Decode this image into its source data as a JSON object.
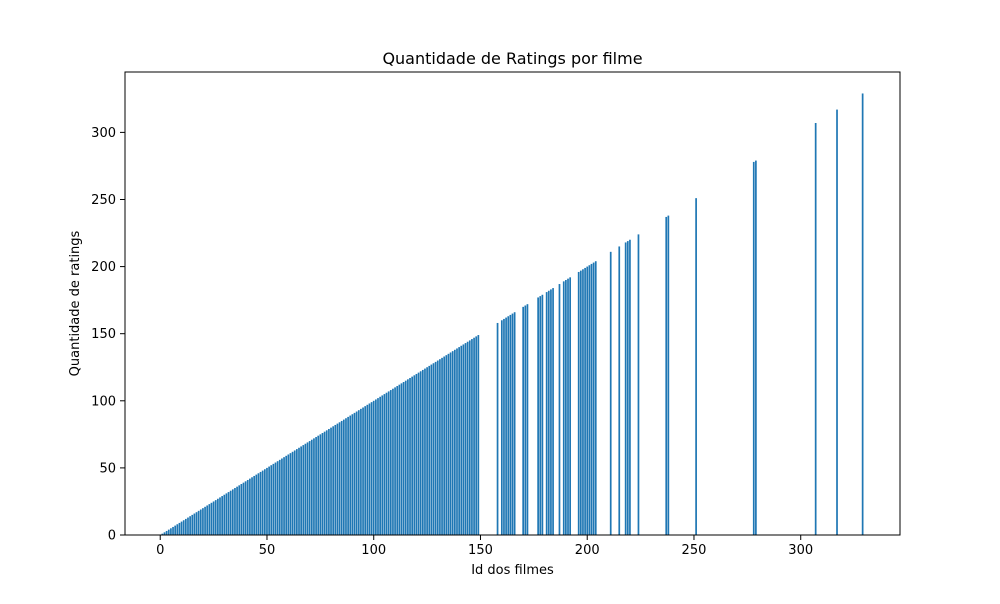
{
  "colors": {
    "bar": "#1f77b4",
    "axis": "#000000",
    "background": "#ffffff"
  },
  "chart_data": {
    "type": "bar",
    "title": "Quantidade de Ratings por filme",
    "xlabel": "Id dos filmes",
    "ylabel": "Quantidade de ratings",
    "xlim": [
      -16.5,
      346.5
    ],
    "ylim": [
      0,
      345
    ],
    "grid": false,
    "bar_width": 0.8,
    "xticks": [
      0,
      50,
      100,
      150,
      200,
      250,
      300
    ],
    "yticks": [
      0,
      50,
      100,
      150,
      200,
      250,
      300
    ],
    "x": [
      1,
      2,
      3,
      4,
      5,
      6,
      7,
      8,
      9,
      10,
      11,
      12,
      13,
      14,
      15,
      16,
      17,
      18,
      19,
      20,
      21,
      22,
      23,
      24,
      25,
      26,
      27,
      28,
      29,
      30,
      31,
      32,
      33,
      34,
      35,
      36,
      37,
      38,
      39,
      40,
      41,
      42,
      43,
      44,
      45,
      46,
      47,
      48,
      49,
      50,
      51,
      52,
      53,
      54,
      55,
      56,
      57,
      58,
      59,
      60,
      61,
      62,
      63,
      64,
      65,
      66,
      67,
      68,
      69,
      70,
      71,
      72,
      73,
      74,
      75,
      76,
      77,
      78,
      79,
      80,
      81,
      82,
      83,
      84,
      85,
      86,
      87,
      88,
      89,
      90,
      91,
      92,
      93,
      94,
      95,
      96,
      97,
      98,
      99,
      100,
      101,
      102,
      103,
      104,
      105,
      106,
      107,
      108,
      109,
      110,
      111,
      112,
      113,
      114,
      115,
      116,
      117,
      118,
      119,
      120,
      121,
      122,
      123,
      124,
      125,
      126,
      127,
      128,
      129,
      130,
      131,
      132,
      133,
      134,
      135,
      136,
      137,
      138,
      139,
      140,
      141,
      142,
      143,
      144,
      145,
      146,
      147,
      148,
      149,
      158,
      160,
      161,
      162,
      163,
      164,
      165,
      166,
      170,
      171,
      172,
      177,
      178,
      179,
      181,
      182,
      183,
      184,
      187,
      189,
      190,
      191,
      192,
      196,
      197,
      198,
      199,
      200,
      201,
      202,
      203,
      204,
      211,
      215,
      218,
      219,
      220,
      224,
      237,
      238,
      251,
      278,
      279,
      307,
      317,
      329
    ],
    "values": [
      1,
      2,
      3,
      4,
      5,
      6,
      7,
      8,
      9,
      10,
      11,
      12,
      13,
      14,
      15,
      16,
      17,
      18,
      19,
      20,
      21,
      22,
      23,
      24,
      25,
      26,
      27,
      28,
      29,
      30,
      31,
      32,
      33,
      34,
      35,
      36,
      37,
      38,
      39,
      40,
      41,
      42,
      43,
      44,
      45,
      46,
      47,
      48,
      49,
      50,
      51,
      52,
      53,
      54,
      55,
      56,
      57,
      58,
      59,
      60,
      61,
      62,
      63,
      64,
      65,
      66,
      67,
      68,
      69,
      70,
      71,
      72,
      73,
      74,
      75,
      76,
      77,
      78,
      79,
      80,
      81,
      82,
      83,
      84,
      85,
      86,
      87,
      88,
      89,
      90,
      91,
      92,
      93,
      94,
      95,
      96,
      97,
      98,
      99,
      100,
      101,
      102,
      103,
      104,
      105,
      106,
      107,
      108,
      109,
      110,
      111,
      112,
      113,
      114,
      115,
      116,
      117,
      118,
      119,
      120,
      121,
      122,
      123,
      124,
      125,
      126,
      127,
      128,
      129,
      130,
      131,
      132,
      133,
      134,
      135,
      136,
      137,
      138,
      139,
      140,
      141,
      142,
      143,
      144,
      145,
      146,
      147,
      148,
      149,
      158,
      160,
      161,
      162,
      163,
      164,
      165,
      166,
      170,
      171,
      172,
      177,
      178,
      179,
      181,
      182,
      183,
      184,
      187,
      189,
      190,
      191,
      192,
      196,
      197,
      198,
      199,
      200,
      201,
      202,
      203,
      204,
      211,
      215,
      218,
      219,
      220,
      224,
      237,
      238,
      251,
      278,
      279,
      307,
      317,
      329
    ]
  }
}
